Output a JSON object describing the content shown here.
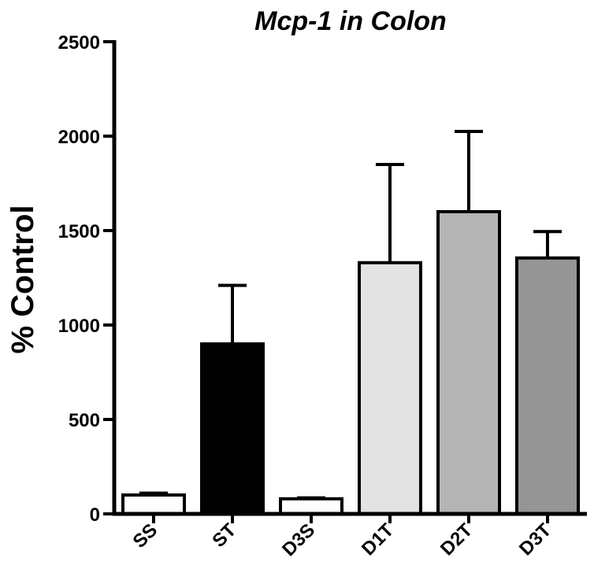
{
  "chart_data": {
    "type": "bar",
    "title": "Mcp-1 in Colon",
    "xlabel": "",
    "ylabel": "% Control",
    "ylim": [
      0,
      2500
    ],
    "yticks": [
      0,
      500,
      1000,
      1500,
      2000,
      2500
    ],
    "categories": [
      "SS",
      "ST",
      "D3S",
      "D1T",
      "D2T",
      "D3T"
    ],
    "values": [
      100,
      900,
      80,
      1330,
      1600,
      1355
    ],
    "errors": [
      10,
      310,
      5,
      520,
      425,
      140
    ],
    "bar_colors": [
      "#ffffff",
      "#000000",
      "#ffffff",
      "#e3e3e3",
      "#b5b5b5",
      "#959595"
    ],
    "grid": false,
    "legend": "none"
  }
}
